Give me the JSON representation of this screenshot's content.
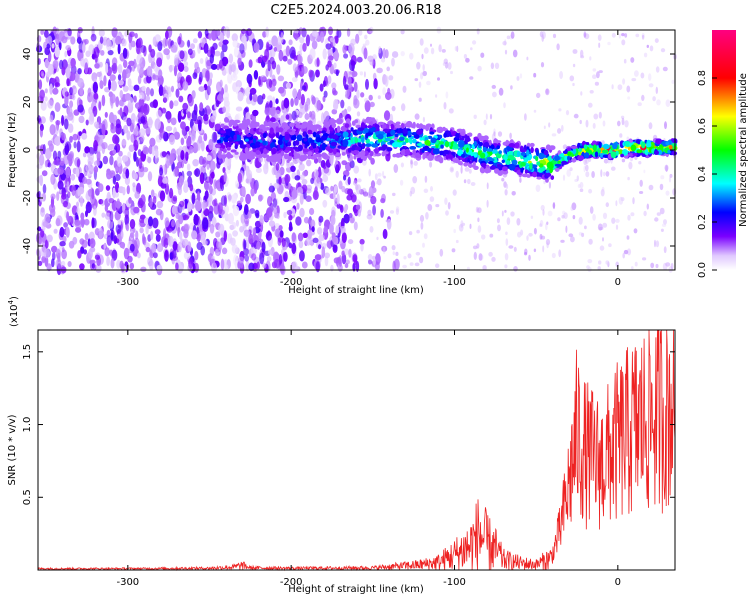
{
  "title": "C2E5.2024.003.20.06.R18",
  "chart_data": [
    {
      "type": "heatmap",
      "xlabel": "Height of straight line (km)",
      "ylabel": "Frequency (Hz)",
      "xlim": [
        -355,
        35
      ],
      "ylim": [
        -50,
        50
      ],
      "x_ticks": [
        -300,
        -200,
        -100,
        0
      ],
      "x_tick_labels": [
        "-300",
        "-200",
        "-100",
        "0"
      ],
      "y_ticks": [
        -40,
        -20,
        0,
        20,
        40
      ],
      "y_tick_labels": [
        "-40",
        "-20",
        "0",
        "20",
        "40"
      ],
      "colorbar": {
        "label": "Normalized spectral amplitude",
        "range": [
          0,
          1
        ],
        "ticks": [
          0.0,
          0.2,
          0.4,
          0.6,
          0.8
        ],
        "tick_labels": [
          "0.0",
          "0.2",
          "0.4",
          "0.6",
          "0.8"
        ],
        "colormap": [
          "#ffffff",
          "#e0c8ff",
          "#7a00ff",
          "#0000ff",
          "#00ffff",
          "#00ff00",
          "#ffff00",
          "#ff0000",
          "#ff00a0"
        ]
      },
      "ridge": {
        "x": [
          -245,
          -225,
          -200,
          -175,
          -150,
          -125,
          -100,
          -80,
          -60,
          -40,
          -30,
          -20,
          -10,
          0,
          10,
          20,
          30,
          35
        ],
        "freq": [
          5,
          4,
          3,
          4,
          5,
          4,
          2,
          -2,
          -4,
          -6,
          -2,
          0,
          0,
          0,
          1,
          1,
          1,
          1
        ],
        "amplitude": [
          0.3,
          0.3,
          0.3,
          0.35,
          0.45,
          0.5,
          0.5,
          0.5,
          0.55,
          0.7,
          0.6,
          0.8,
          0.85,
          0.9,
          0.85,
          0.8,
          0.7,
          0.7
        ]
      },
      "noise_region_x": [
        -355,
        -160
      ]
    },
    {
      "type": "line",
      "xlabel": "Height of straight line (km)",
      "ylabel": "SNR (10 * v/v)",
      "multiplier_label": "(x10",
      "multiplier_exp": "4",
      "multiplier_close": ")",
      "xlim": [
        -355,
        35
      ],
      "ylim": [
        0,
        1.65
      ],
      "x_ticks": [
        -300,
        -200,
        -100,
        0
      ],
      "x_tick_labels": [
        "-300",
        "-200",
        "-100",
        "0"
      ],
      "y_ticks": [
        0.5,
        1.0,
        1.5
      ],
      "y_tick_labels": [
        "0.5",
        "1.0",
        "1.5"
      ],
      "series": [
        {
          "color": "#ee2222",
          "x": [
            -355,
            -300,
            -250,
            -235,
            -230,
            -225,
            -200,
            -150,
            -120,
            -110,
            -100,
            -90,
            -85,
            -80,
            -75,
            -70,
            -60,
            -50,
            -40,
            -35,
            -30,
            -25,
            -20,
            -10,
            0,
            10,
            20,
            30,
            35
          ],
          "y": [
            0.01,
            0.01,
            0.015,
            0.03,
            0.05,
            0.02,
            0.015,
            0.02,
            0.06,
            0.09,
            0.18,
            0.3,
            0.45,
            0.33,
            0.25,
            0.12,
            0.08,
            0.06,
            0.15,
            0.4,
            0.8,
            1.3,
            1.1,
            1.0,
            1.2,
            1.35,
            1.45,
            1.55,
            1.58
          ]
        }
      ]
    }
  ]
}
